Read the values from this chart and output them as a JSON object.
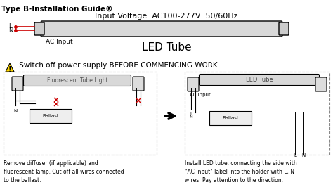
{
  "title": "Type B-Installation Guide®",
  "subtitle": "Input Voltage: AC100-277V  50/60Hz",
  "led_tube_label": "LED Tube",
  "ac_input_label": "AC Input",
  "warning_text": " Switch off power supply BEFORE COMMENCING WORK",
  "left_diagram_label": "Fluorescent Tube Light",
  "right_diagram_label": "LED Tube",
  "right_ac_input": "AC Input",
  "left_caption": "Remove diffuser (if applicable) and\nfluorescent lamp. Cut off all wires connected\nto the ballast.",
  "right_caption": "Install LED tube, connecting the side with\n\"AC Input\" label into the holder with L, N\nwires. Pay attention to the direction.",
  "ballast_label": "Ballast",
  "bg_color": "#ffffff",
  "line_color": "#000000",
  "red_color": "#cc0000",
  "gray_tube": "#d8d8d8",
  "dashed_box_color": "#888888"
}
